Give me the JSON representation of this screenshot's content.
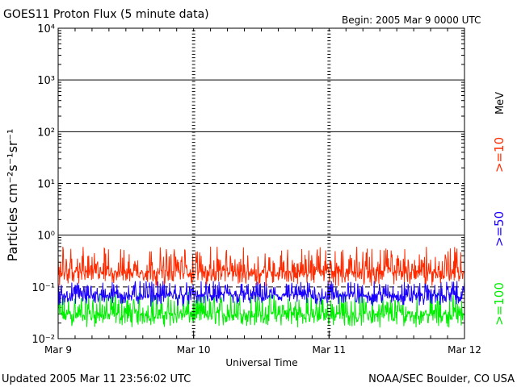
{
  "chart_data": {
    "type": "line",
    "title": "GOES11 Proton Flux (5 minute data)",
    "begin": "Begin: 2005 Mar 9 0000 UTC",
    "xlabel": "Universal Time",
    "ylabel": "Particles cm⁻²s⁻¹sr⁻¹",
    "yscale": "log",
    "ylim": [
      0.01,
      10000
    ],
    "y_ticks": [
      {
        "value": 0.01,
        "label": "10⁻²"
      },
      {
        "value": 0.1,
        "label": "10⁻¹"
      },
      {
        "value": 1,
        "label": "10⁰"
      },
      {
        "value": 10,
        "label": "10¹"
      },
      {
        "value": 100,
        "label": "10²"
      },
      {
        "value": 1000,
        "label": "10³"
      },
      {
        "value": 10000,
        "label": "10⁴"
      }
    ],
    "x_ticks": [
      {
        "day": 0,
        "label": "Mar 9"
      },
      {
        "day": 1,
        "label": "Mar 10"
      },
      {
        "day": 2,
        "label": "Mar 11"
      },
      {
        "day": 3,
        "label": "Mar 12"
      }
    ],
    "xlim_days": [
      0,
      3
    ],
    "reference_lines": [
      {
        "value": 10,
        "style": "dashed"
      },
      {
        "value": 0.1,
        "style": "dashed"
      }
    ],
    "series": [
      {
        "name": ">=10",
        "color": "#ff2a00",
        "typical": 0.2,
        "range": [
          0.1,
          0.6
        ]
      },
      {
        "name": ">=50",
        "color": "#1a00ff",
        "typical": 0.07,
        "range": [
          0.04,
          0.13
        ]
      },
      {
        "name": ">=100",
        "color": "#00ee00",
        "typical": 0.03,
        "range": [
          0.016,
          0.08
        ]
      }
    ],
    "unit_label": "MeV",
    "data_end_day": 3.0
  },
  "footer": {
    "updated": "Updated 2005 Mar 11 23:56:02 UTC",
    "credit": "NOAA/SEC Boulder, CO USA"
  }
}
